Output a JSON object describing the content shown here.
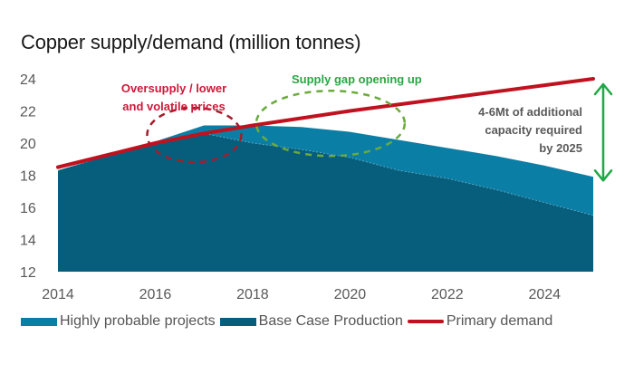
{
  "chart_data": {
    "type": "area",
    "title": "Copper supply/demand (million tonnes)",
    "xlabel": "",
    "ylabel": "",
    "x": [
      2014,
      2015,
      2016,
      2017,
      2018,
      2019,
      2020,
      2021,
      2022,
      2023,
      2024,
      2025
    ],
    "xlim": [
      2014,
      2025
    ],
    "ylim": [
      12,
      24
    ],
    "xticks": [
      "2014",
      "2016",
      "2018",
      "2020",
      "2022",
      "2024"
    ],
    "yticks": [
      "24",
      "22",
      "20",
      "18",
      "16",
      "14",
      "12"
    ],
    "grid": false,
    "legend_position": "bottom",
    "series": [
      {
        "name": "Base Case Production",
        "kind": "area",
        "color": "#075e7c",
        "values": [
          18.3,
          19.2,
          20.0,
          20.6,
          20.0,
          19.6,
          19.1,
          18.3,
          17.8,
          17.1,
          16.3,
          15.5
        ]
      },
      {
        "name": "Highly probable projects",
        "kind": "area-stacked-top",
        "color": "#0b7ea5",
        "values_total": [
          18.3,
          19.2,
          20.1,
          21.1,
          21.1,
          21.0,
          20.7,
          20.2,
          19.7,
          19.2,
          18.6,
          17.9
        ]
      },
      {
        "name": "Primary demand",
        "kind": "line",
        "color": "#c0111f",
        "values": [
          18.5,
          19.25,
          20.0,
          20.6,
          21.1,
          21.55,
          22.0,
          22.4,
          22.8,
          23.2,
          23.6,
          24.0
        ]
      }
    ],
    "annotations": [
      {
        "id": "oversupply",
        "lines": [
          "Oversupply  / lower",
          "and volatile prices"
        ],
        "color": "#cc1a3a",
        "near_x": 2016.8,
        "near_y": 20.5,
        "shape": "dashed-ellipse"
      },
      {
        "id": "supply-gap",
        "lines": [
          "Supply gap opening up"
        ],
        "color": "#28a745",
        "near_x": 2019.6,
        "near_y": 21.0,
        "shape": "dashed-ellipse"
      },
      {
        "id": "capacity",
        "lines": [
          "4-6Mt of additional",
          "capacity required",
          "by 2025"
        ],
        "color": "#5a5a5a",
        "arrow_from": 24.0,
        "arrow_to": 17.9,
        "arrow_color": "#1fa846"
      }
    ]
  },
  "legend": {
    "items": [
      {
        "label": "Highly probable projects",
        "color": "#0b7ea5",
        "kind": "box"
      },
      {
        "label": "Base Case Production",
        "color": "#075e7c",
        "kind": "box"
      },
      {
        "label": "Primary demand",
        "color": "#c0111f",
        "kind": "line"
      }
    ]
  }
}
